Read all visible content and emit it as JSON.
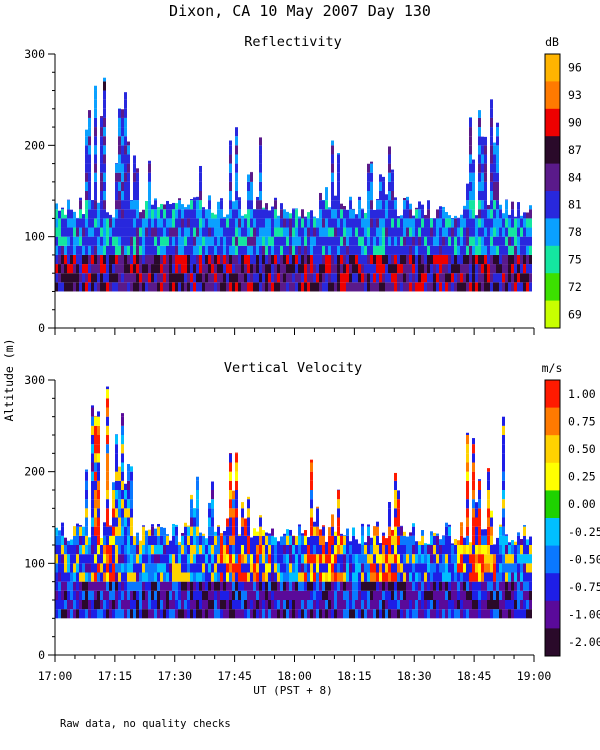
{
  "page_title": "Dixon, CA 10 May 2007  Day 130",
  "footnote": "Raw data, no quality checks",
  "chart_data": [
    {
      "type": "heatmap",
      "title": "Reflectivity",
      "ylabel": "Altitude (m)",
      "xlabel": "UT  (PST + 8)",
      "ylim": [
        0,
        300
      ],
      "yticks": [
        0,
        100,
        200,
        300
      ],
      "colorbar_unit": "dB",
      "colorbar_labels": [
        "96",
        "93",
        "90",
        "87",
        "84",
        "81",
        "78",
        "75",
        "72",
        "69"
      ],
      "colorbar_colors": [
        "#ffb400",
        "#ff7a00",
        "#ee0000",
        "#2a0a2a",
        "#5a1a8a",
        "#2828dd",
        "#0aa0ff",
        "#14e6a0",
        "#3ce000",
        "#c8ff00"
      ],
      "data_description": "Radar reflectivity returns between about 40 m and 300 m altitude; dense layer below ~140 m with sparse plumes reaching 300 m near 17:10-17:25 and 18:45."
    },
    {
      "type": "heatmap",
      "title": "Vertical Velocity",
      "ylabel": "Altitude (m)",
      "xlabel": "UT  (PST + 8)",
      "ylim": [
        0,
        300
      ],
      "yticks": [
        0,
        100,
        200,
        300
      ],
      "x_tick_labels": [
        "17:00",
        "17:15",
        "17:30",
        "17:45",
        "18:00",
        "18:15",
        "18:30",
        "18:45",
        "19:00"
      ],
      "xlim": [
        "17:00",
        "19:00"
      ],
      "colorbar_unit": "m/s",
      "colorbar_labels": [
        "1.00",
        "0.75",
        "0.50",
        "0.25",
        "0.00",
        "-0.25",
        "-0.50",
        "-0.75",
        "-1.00",
        "-2.00"
      ],
      "colorbar_colors": [
        "#ff1a00",
        "#ff7a00",
        "#ffd200",
        "#ffff00",
        "#1ed200",
        "#00bfff",
        "#0a78ff",
        "#1e1ee6",
        "#5a0a9a",
        "#2a0a2a"
      ],
      "data_description": "Vertical velocity of radar echoes; strong updrafts (red, ~1 m/s) in columns around 17:40-17:50, 18:05-18:10, 18:20 and 18:45-18:50; downdrafts (purple) near surface."
    }
  ],
  "colors": {
    "background": "#ffffff",
    "axis": "#000000"
  }
}
